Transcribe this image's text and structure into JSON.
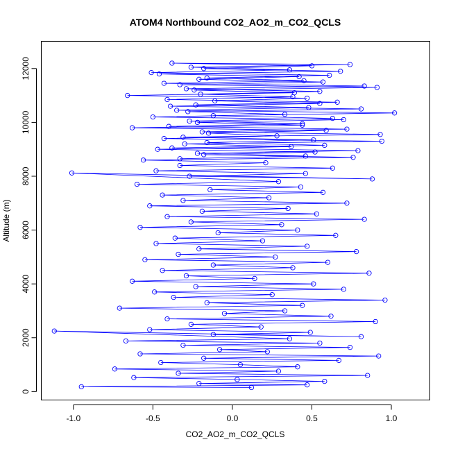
{
  "chart_data": {
    "type": "scatter",
    "title": "ATOM4 Northbound CO2_AO2_m_CO2_QCLS",
    "xlabel": "CO2_AO2_m_CO2_QCLS",
    "ylabel": "Altitude (m)",
    "xlim": [
      -1.2,
      1.24
    ],
    "ylim": [
      -300,
      13000
    ],
    "xticks": [
      -1.0,
      -0.5,
      0.0,
      0.5,
      1.0
    ],
    "xtick_labels": [
      "-1.0",
      "-0.5",
      "0.0",
      "0.5",
      "1.0"
    ],
    "yticks": [
      0,
      2000,
      4000,
      6000,
      8000,
      10000,
      12000
    ],
    "ytick_labels": [
      "0",
      "2000",
      "4000",
      "6000",
      "8000",
      "10000",
      "12000"
    ],
    "grid": false,
    "style": "points connected by lines, open circles",
    "color": "#0000ff",
    "series": [
      {
        "values_x": [
          0.12,
          -0.95,
          0.47,
          -0.21,
          0.58,
          0.03,
          -0.62,
          0.85,
          -0.34,
          0.29,
          -0.74,
          0.41,
          0.05,
          -0.45,
          0.67,
          -0.18,
          0.92,
          -0.58,
          0.22,
          -0.08,
          0.74,
          -0.31,
          0.55,
          -0.67,
          0.36,
          -1.12,
          0.81,
          -0.12,
          0.49,
          -0.52,
          0.18,
          -0.26,
          0.9,
          -0.41,
          0.62,
          -0.05,
          0.33,
          -0.71,
          0.44,
          -0.16,
          0.96,
          -0.37,
          0.25,
          -0.49,
          0.7,
          -0.23,
          0.51,
          -0.63,
          0.14,
          -0.29,
          0.86,
          -0.44,
          0.38,
          -0.12,
          0.6,
          -0.55,
          0.27,
          -0.34,
          0.78,
          -0.21,
          0.47,
          -0.48,
          0.19,
          -0.36,
          0.65,
          -0.09,
          0.41,
          -0.58,
          0.31,
          -0.26,
          0.83,
          -0.41,
          0.53,
          -0.19,
          0.35,
          -0.52,
          0.72,
          -0.31,
          0.23,
          -0.44,
          0.57,
          -0.14,
          0.43,
          -0.6,
          0.29,
          -1.01,
          0.88,
          -0.27,
          0.46,
          -0.48,
          0.63,
          -0.33,
          0.21,
          -0.56,
          0.76,
          -0.18,
          0.52,
          -0.47,
          0.37,
          -0.3,
          0.94,
          -0.43,
          0.28,
          -0.15,
          0.59,
          -0.63,
          0.44,
          -0.22,
          0.7,
          -0.5,
          0.33,
          -0.28,
          0.81,
          -0.39,
          0.55,
          -0.11,
          0.47,
          -0.66,
          0.39,
          -0.24,
          0.91,
          -0.33,
          0.57,
          -0.21,
          0.42,
          -0.46,
          0.68,
          -0.18,
          0.5,
          -0.38,
          0.74,
          -0.26,
          0.36,
          -0.51,
          0.61,
          -0.16,
          0.45,
          -0.43,
          0.83,
          -0.29,
          0.55,
          -0.2,
          0.38,
          -0.41,
          0.66,
          -0.23,
          0.48,
          -0.35,
          1.02,
          -0.12,
          0.63,
          -0.27,
          0.44,
          -0.4,
          0.72,
          -0.19,
          0.93,
          -0.31,
          0.51,
          -0.16,
          0.58,
          -0.38,
          0.79,
          -0.22,
          0.46,
          -0.33
        ],
        "values_y": [
          150,
          180,
          250,
          300,
          380,
          450,
          520,
          600,
          680,
          760,
          840,
          920,
          1000,
          1080,
          1160,
          1240,
          1320,
          1400,
          1480,
          1560,
          1640,
          1720,
          1800,
          1880,
          1960,
          2250,
          2040,
          2120,
          2200,
          2300,
          2400,
          2500,
          2600,
          2700,
          2800,
          2900,
          3000,
          3100,
          3200,
          3300,
          3400,
          3500,
          3600,
          3700,
          3800,
          3900,
          4000,
          4100,
          4200,
          4300,
          4400,
          4500,
          4600,
          4700,
          4800,
          4900,
          5000,
          5100,
          5200,
          5300,
          5400,
          5500,
          5600,
          5700,
          5800,
          5900,
          6000,
          6100,
          6200,
          6300,
          6400,
          6500,
          6600,
          6700,
          6800,
          6900,
          7000,
          7100,
          7200,
          7300,
          7400,
          7500,
          7600,
          7700,
          7800,
          8120,
          7900,
          8000,
          8100,
          8200,
          8300,
          8400,
          8500,
          8600,
          8700,
          8800,
          8900,
          9000,
          9100,
          9200,
          9300,
          9400,
          9500,
          9600,
          9700,
          9800,
          9900,
          10000,
          10100,
          10200,
          10300,
          10400,
          10500,
          10600,
          10700,
          10800,
          10900,
          11000,
          11100,
          11200,
          11300,
          11400,
          11500,
          11600,
          11700,
          11800,
          11900,
          12000,
          12100,
          12200,
          12150,
          12050,
          11950,
          11850,
          11750,
          11650,
          11550,
          11450,
          11350,
          11250,
          11150,
          11050,
          10950,
          10850,
          10750,
          10650,
          10550,
          10450,
          10350,
          10250,
          10150,
          10050,
          9950,
          9850,
          9750,
          9650,
          9550,
          9450,
          9350,
          9250,
          9150,
          9050,
          8950,
          8850,
          8750,
          8650
        ]
      }
    ]
  }
}
